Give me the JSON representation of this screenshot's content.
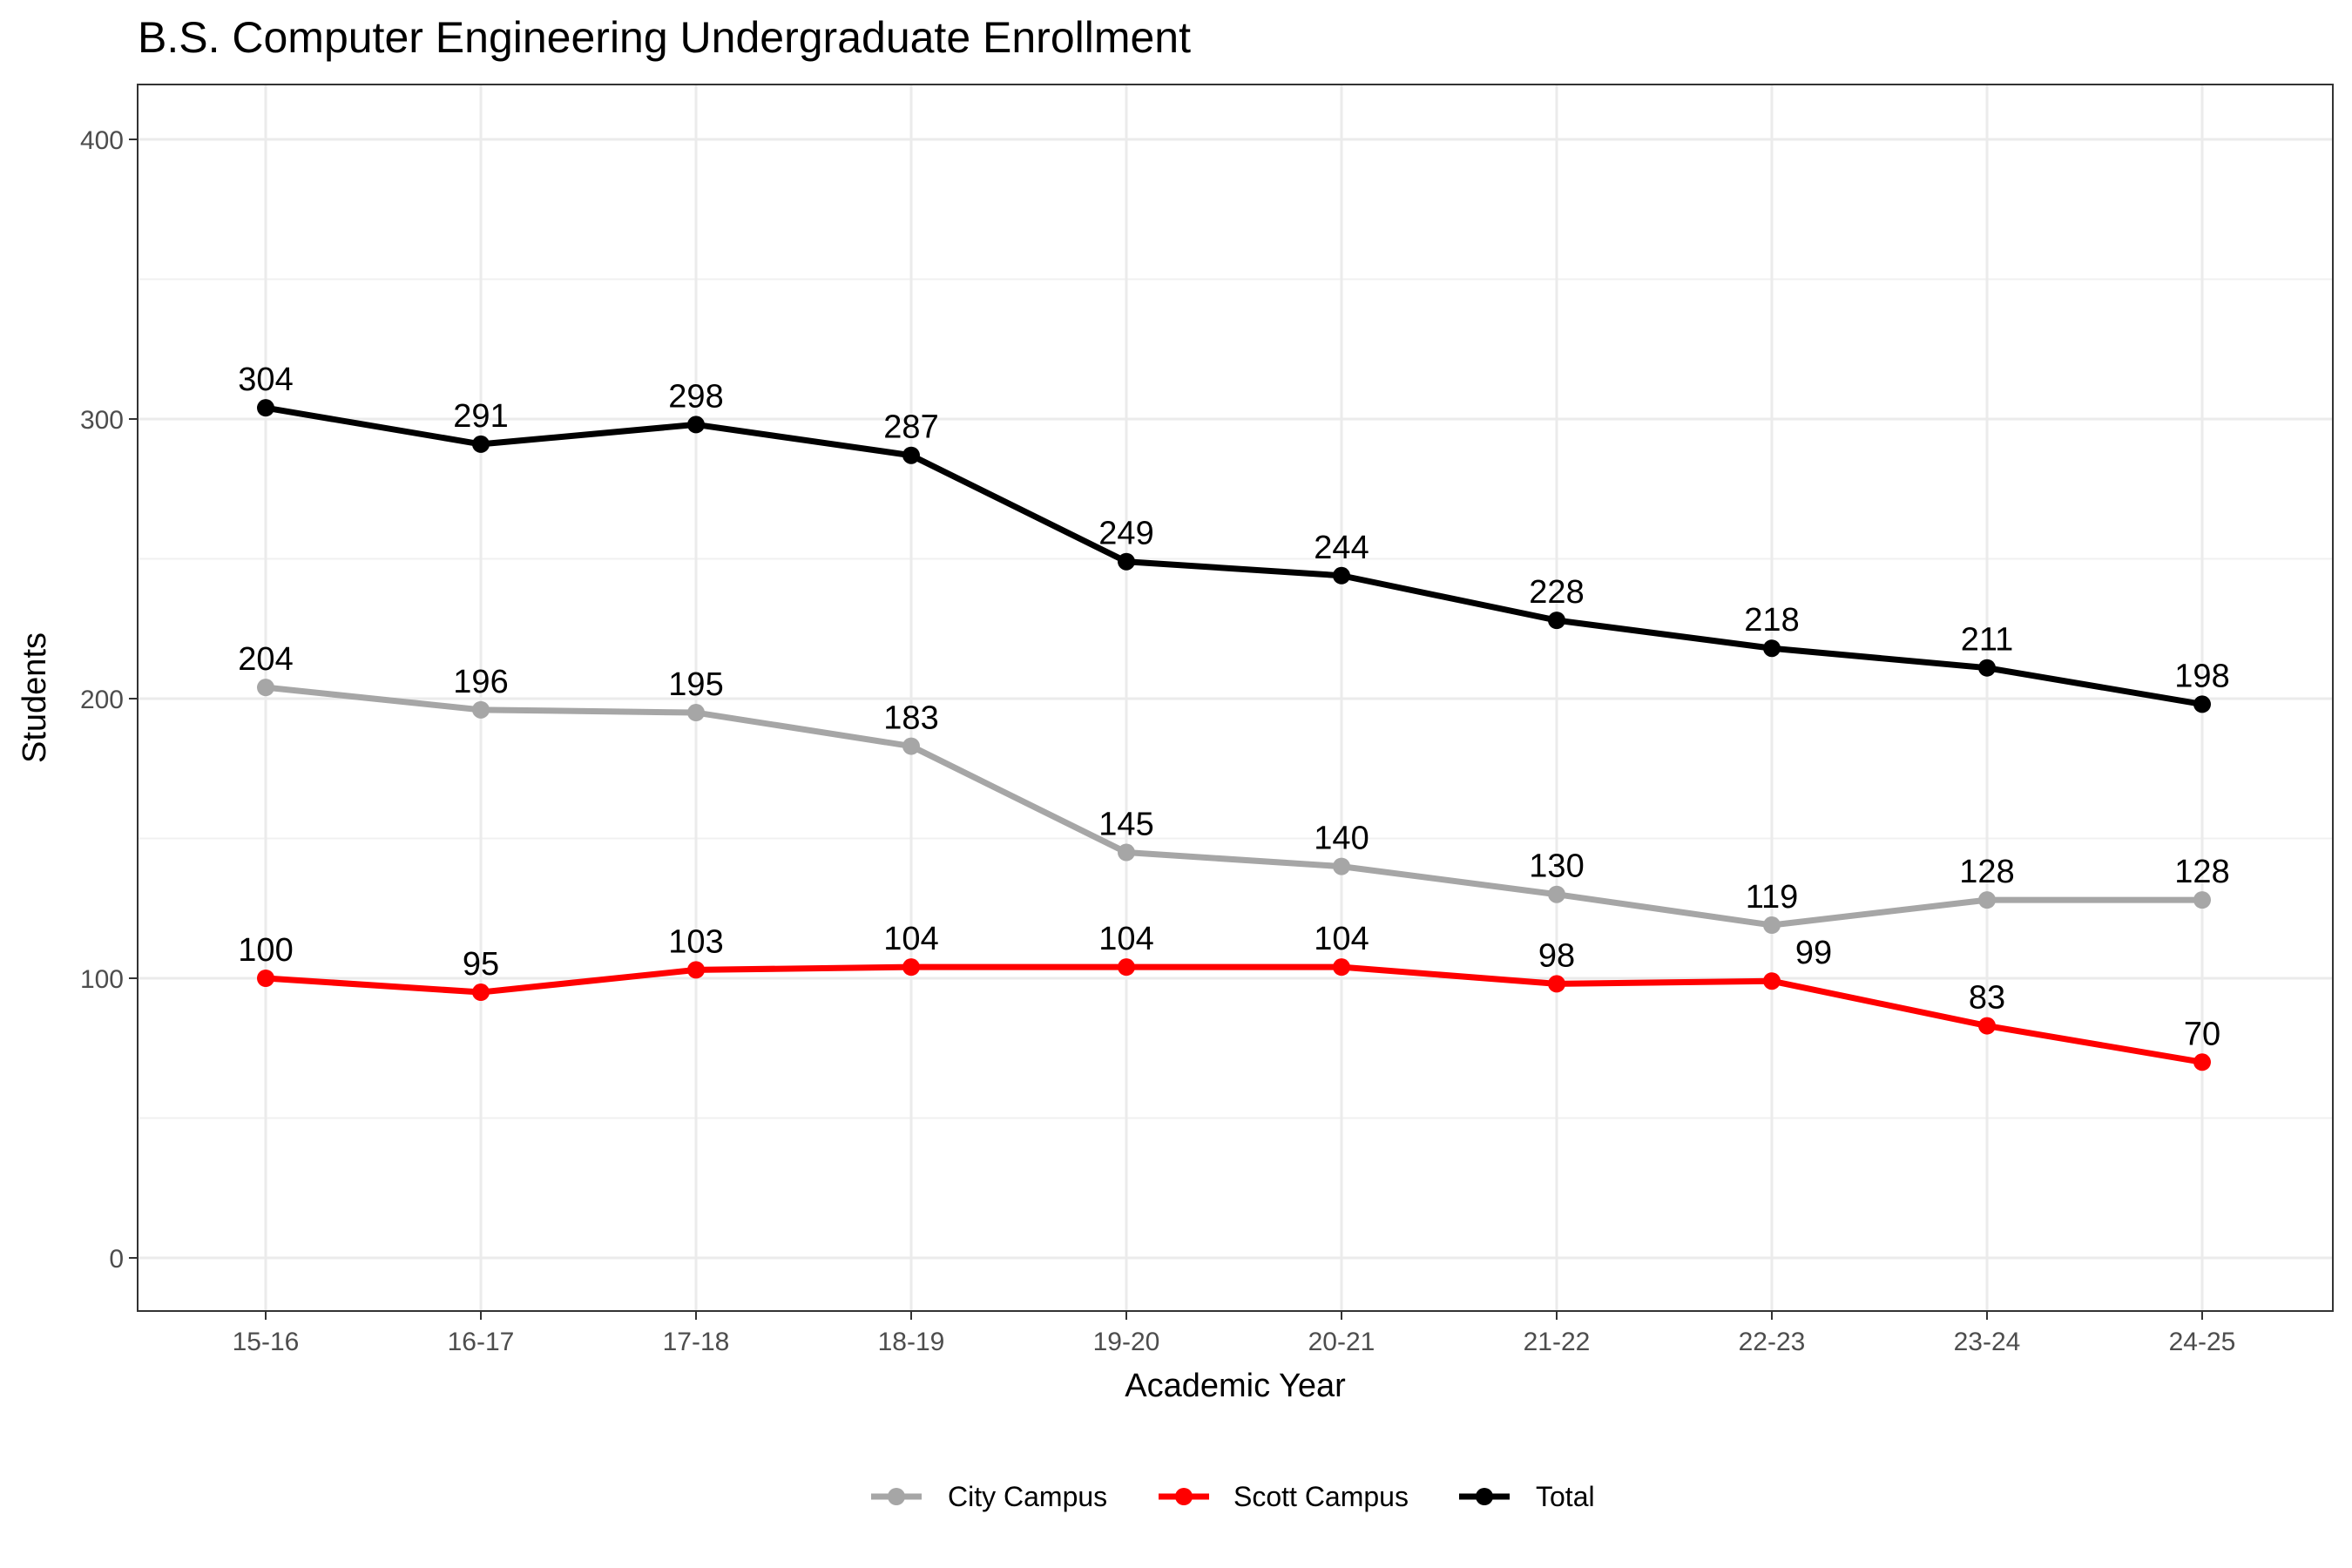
{
  "chart_data": {
    "type": "line",
    "title": "B.S. Computer Engineering Undergraduate Enrollment",
    "xlabel": "Academic Year",
    "ylabel": "Students",
    "categories": [
      "15-16",
      "16-17",
      "17-18",
      "18-19",
      "19-20",
      "20-21",
      "21-22",
      "22-23",
      "23-24",
      "24-25"
    ],
    "ylim": [
      -18,
      420
    ],
    "yticks": [
      0,
      100,
      200,
      300,
      400
    ],
    "grid": true,
    "legend_position": "bottom",
    "series": [
      {
        "name": "City Campus",
        "color": "#a6a6a6",
        "values": [
          204,
          196,
          195,
          183,
          145,
          140,
          130,
          119,
          128,
          128
        ]
      },
      {
        "name": "Scott Campus",
        "color": "#ff0000",
        "values": [
          100,
          95,
          103,
          104,
          104,
          104,
          98,
          99,
          83,
          70
        ]
      },
      {
        "name": "Total",
        "color": "#000000",
        "values": [
          304,
          291,
          298,
          287,
          249,
          244,
          228,
          218,
          211,
          198
        ]
      }
    ]
  }
}
